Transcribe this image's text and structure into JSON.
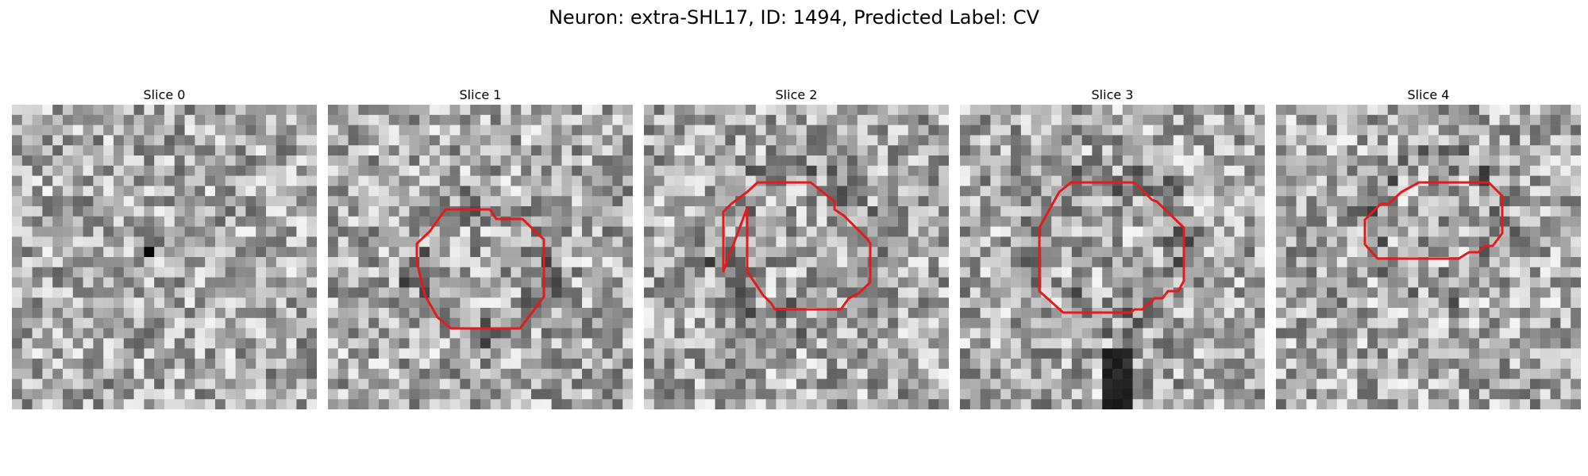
{
  "figure": {
    "title": "Neuron: extra-SHL17, ID: 1494, Predicted Label: CV"
  },
  "panels": [
    {
      "title": "Slice 0",
      "has_outline": false,
      "dark_center": true
    },
    {
      "title": "Slice 1",
      "has_outline": true
    },
    {
      "title": "Slice 2",
      "has_outline": true
    },
    {
      "title": "Slice 3",
      "has_outline": true
    },
    {
      "title": "Slice 4",
      "has_outline": true
    }
  ],
  "colors": {
    "outline": "#e41a1c",
    "background": "#ffffff"
  }
}
